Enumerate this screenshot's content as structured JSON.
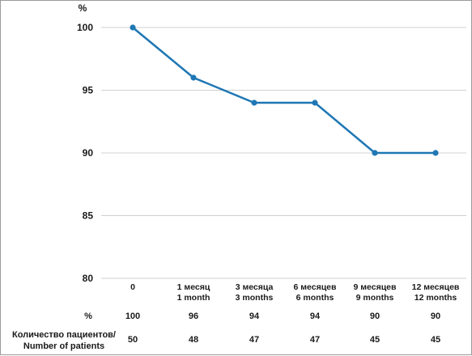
{
  "chart_data": {
    "type": "line",
    "ylabel": "%",
    "ylim": [
      80,
      100
    ],
    "yticks": [
      80,
      85,
      90,
      95,
      100
    ],
    "grid": true,
    "categories": [
      [
        "0"
      ],
      [
        "1 месяц",
        "1 month"
      ],
      [
        "3 месяца",
        "3 months"
      ],
      [
        "6 месяцев",
        "6 months"
      ],
      [
        "9 месяцев",
        "9 months"
      ],
      [
        "12 месяцев",
        "12 months"
      ]
    ],
    "series": [
      {
        "values": [
          100,
          96,
          94,
          94,
          90,
          90
        ]
      }
    ],
    "colors": {
      "line": "#1f77b4",
      "grid": "#d0d0d0"
    },
    "table": {
      "rows": [
        {
          "label_lines": [
            "%"
          ],
          "values": [
            "100",
            "96",
            "94",
            "94",
            "90",
            "90"
          ]
        },
        {
          "label_lines": [
            "Количество пациентов/",
            "Number of patients"
          ],
          "values": [
            "50",
            "48",
            "47",
            "47",
            "45",
            "45"
          ]
        }
      ]
    }
  }
}
